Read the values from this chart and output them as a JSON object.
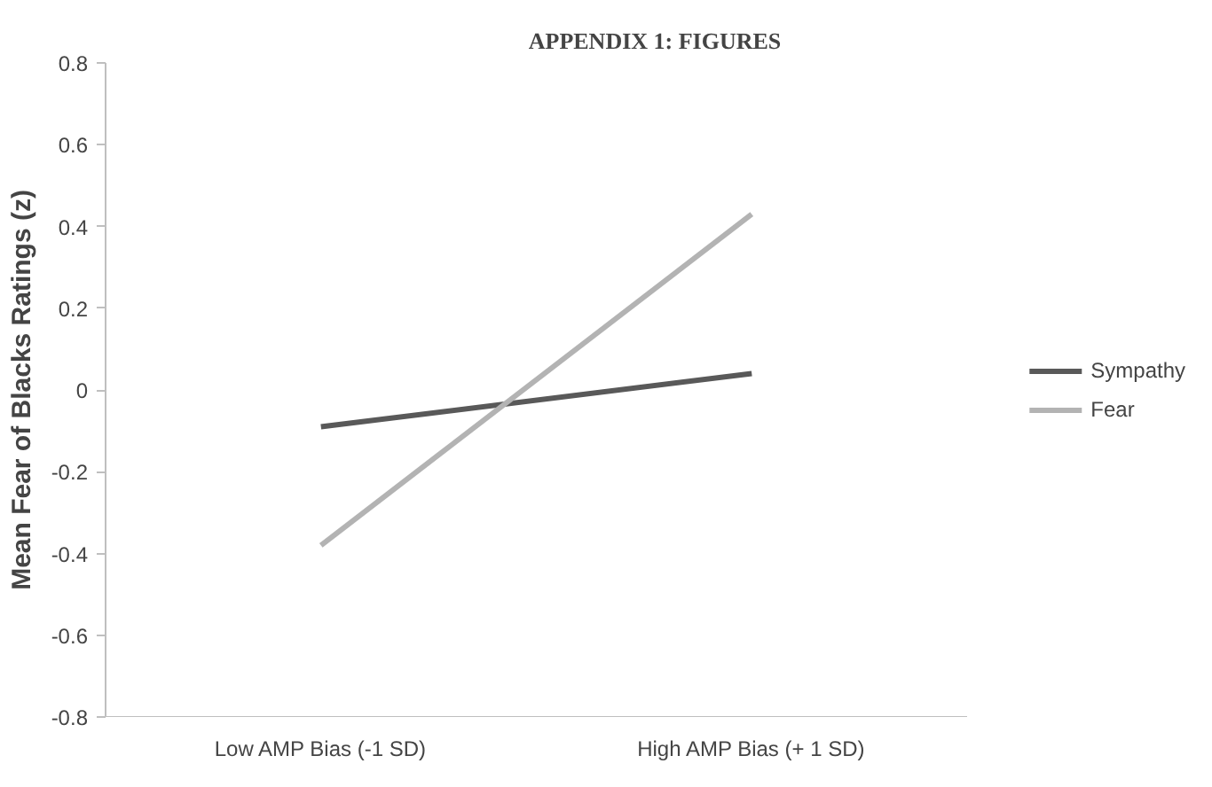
{
  "chart_data": {
    "type": "line",
    "title": "APPENDIX 1: FIGURES",
    "ylabel": "Mean Fear of Blacks Ratings (z)",
    "categories": [
      "Low AMP Bias (-1 SD)",
      "High AMP Bias (+ 1 SD)"
    ],
    "series": [
      {
        "name": "Sympathy",
        "color": "#595959",
        "values": [
          -0.09,
          0.04
        ]
      },
      {
        "name": "Fear",
        "color": "#b3b3b3",
        "values": [
          -0.38,
          0.43
        ]
      }
    ],
    "ylim": [
      -0.8,
      0.8
    ],
    "yticks": [
      -0.8,
      -0.6,
      -0.4,
      -0.2,
      0,
      0.2,
      0.4,
      0.6,
      0.8
    ],
    "grid": false,
    "legend": "right",
    "marker": "none",
    "line_style": "solid"
  }
}
